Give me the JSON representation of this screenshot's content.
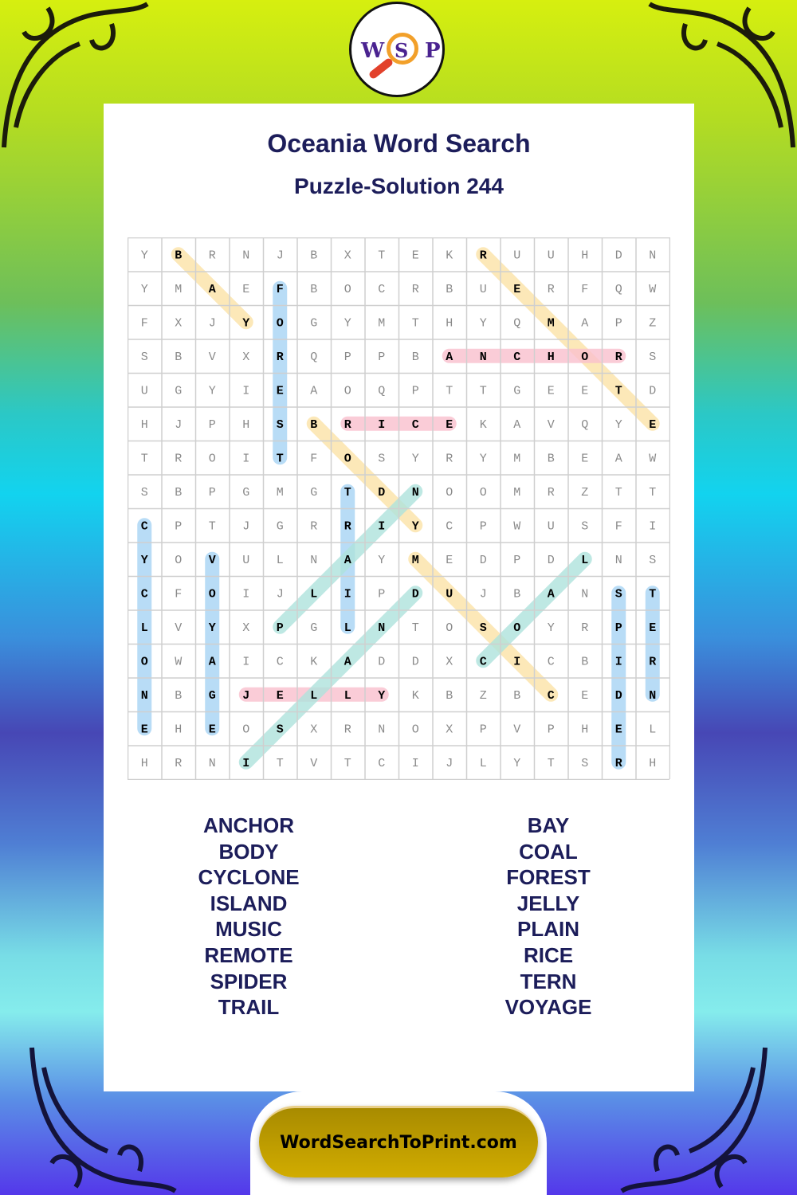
{
  "logo": {
    "left": "W",
    "center": "S",
    "right": "P"
  },
  "title": "Oceania Word Search",
  "subtitle": "Puzzle-Solution 244",
  "grid": [
    "YBRNJBXTEKRUUHDN",
    "YMAEFBOCRBUERFQW",
    "FXJYOGYMTHYQMAPZ",
    "SBVXRQPPBANCHORS",
    "UGYIEAOQPTTGEETD",
    "HJPHSBRICEKAVQYE",
    "TROITFOSYRYMBEAW",
    "SBPGMGTDNOOMRZTT",
    "CPTJGRRIYCPWUSFI",
    "YOVULNAYMEDPDLNS",
    "CFOIJLIPDUJBANST",
    "LVYXPGLNTOSOYRPE",
    "OWAICKADDXCICBIR",
    "NBGJELLYKBZBCEDN",
    "EHEOSXRNOXPVPHEL",
    "HRNITVTCIJLYTSRH"
  ],
  "colors": {
    "yellow": "#fbe2a6",
    "blue": "#a6d3f4",
    "pink": "#f9bfcd",
    "teal": "#aee2dc",
    "title": "#1c1d5a"
  },
  "solutions": [
    {
      "word": "BAY",
      "start": [
        0,
        1
      ],
      "end": [
        2,
        3
      ],
      "color": "yellow"
    },
    {
      "word": "FOREST",
      "start": [
        1,
        4
      ],
      "end": [
        6,
        4
      ],
      "color": "blue"
    },
    {
      "word": "REMOTE",
      "start": [
        0,
        10
      ],
      "end": [
        5,
        15
      ],
      "color": "yellow"
    },
    {
      "word": "ANCHOR",
      "start": [
        3,
        9
      ],
      "end": [
        3,
        14
      ],
      "color": "pink"
    },
    {
      "word": "RICE",
      "start": [
        5,
        6
      ],
      "end": [
        5,
        9
      ],
      "color": "pink"
    },
    {
      "word": "BODY",
      "start": [
        5,
        5
      ],
      "end": [
        8,
        8
      ],
      "color": "yellow"
    },
    {
      "word": "TRAIL",
      "start": [
        7,
        6
      ],
      "end": [
        11,
        6
      ],
      "color": "blue"
    },
    {
      "word": "PLAIN",
      "start": [
        11,
        4
      ],
      "end": [
        7,
        8
      ],
      "color": "teal"
    },
    {
      "word": "CYCLONE",
      "start": [
        8,
        0
      ],
      "end": [
        14,
        0
      ],
      "color": "blue"
    },
    {
      "word": "VOYAGE",
      "start": [
        9,
        2
      ],
      "end": [
        14,
        2
      ],
      "color": "blue"
    },
    {
      "word": "JELLY",
      "start": [
        13,
        3
      ],
      "end": [
        13,
        7
      ],
      "color": "pink"
    },
    {
      "word": "ISLAND",
      "start": [
        15,
        3
      ],
      "end": [
        10,
        8
      ],
      "color": "teal"
    },
    {
      "word": "MUSIC",
      "start": [
        9,
        8
      ],
      "end": [
        13,
        12
      ],
      "color": "yellow"
    },
    {
      "word": "COAL",
      "start": [
        12,
        10
      ],
      "end": [
        9,
        13
      ],
      "color": "teal"
    },
    {
      "word": "SPIDER",
      "start": [
        10,
        14
      ],
      "end": [
        15,
        14
      ],
      "color": "blue"
    },
    {
      "word": "TERN",
      "start": [
        10,
        15
      ],
      "end": [
        13,
        15
      ],
      "color": "blue"
    }
  ],
  "word_list": {
    "left": [
      "ANCHOR",
      "BODY",
      "CYCLONE",
      "ISLAND",
      "MUSIC",
      "REMOTE",
      "SPIDER",
      "TRAIL"
    ],
    "right": [
      "BAY",
      "COAL",
      "FOREST",
      "JELLY",
      "PLAIN",
      "RICE",
      "TERN",
      "VOYAGE"
    ]
  },
  "footer": {
    "site": "WordSearchToPrint.com"
  }
}
